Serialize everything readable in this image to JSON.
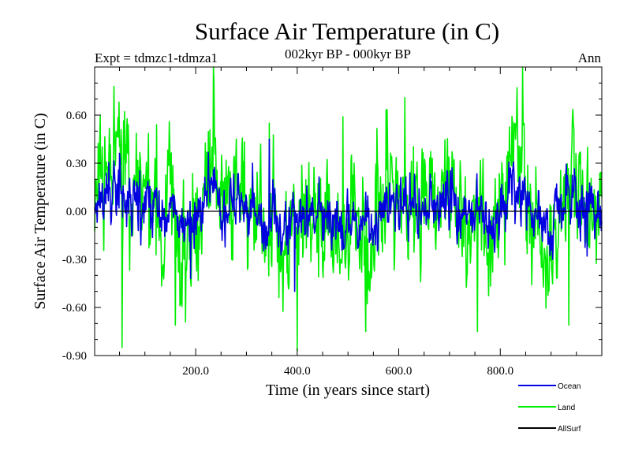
{
  "chart_data": {
    "type": "line",
    "title": "Surface Air Temperature (in C)",
    "subtitle_left": "Expt = tdmzc1-tdmza1",
    "subtitle_center": "002kyr BP - 000kyr BP",
    "subtitle_right": "Ann",
    "xlabel": "Time (in years since start)",
    "ylabel": "Surface Air Temperature (in C)",
    "xlim": [
      1,
      1000
    ],
    "ylim": [
      -0.9,
      0.9
    ],
    "x_ticks": [
      200,
      400,
      600,
      800
    ],
    "x_tick_labels": [
      "200.0",
      "400.0",
      "600.0",
      "800.0"
    ],
    "y_ticks": [
      -0.9,
      -0.6,
      -0.3,
      0.0,
      0.3,
      0.6
    ],
    "y_tick_labels": [
      "-0.90",
      "-0.60",
      "-0.30",
      "0.00",
      "0.30",
      "0.60"
    ],
    "x": {
      "start": 1,
      "end": 1000,
      "step": 1
    },
    "series": [
      {
        "name": "Ocean",
        "color": "#0000e0",
        "mean": 0.0,
        "std": 0.12,
        "peaks": [
          [
            345,
            0.45
          ],
          [
            312,
            0.3
          ],
          [
            190,
            -0.42
          ],
          [
            395,
            -0.5
          ]
        ]
      },
      {
        "name": "Land",
        "color": "#00ee00",
        "mean": 0.0,
        "std": 0.24,
        "peaks": [
          [
            612,
            0.71
          ],
          [
            345,
            0.55
          ],
          [
            123,
            0.54
          ],
          [
            490,
            0.59
          ],
          [
            400,
            -0.87
          ],
          [
            55,
            -0.85
          ],
          [
            160,
            -0.71
          ],
          [
            535,
            -0.75
          ],
          [
            755,
            -0.75
          ],
          [
            935,
            -0.71
          ]
        ]
      },
      {
        "name": "AllSurf",
        "color": "#000000",
        "mean": 0.0,
        "std": 0.0,
        "peaks": []
      }
    ],
    "legend_position": "bottom-right"
  }
}
